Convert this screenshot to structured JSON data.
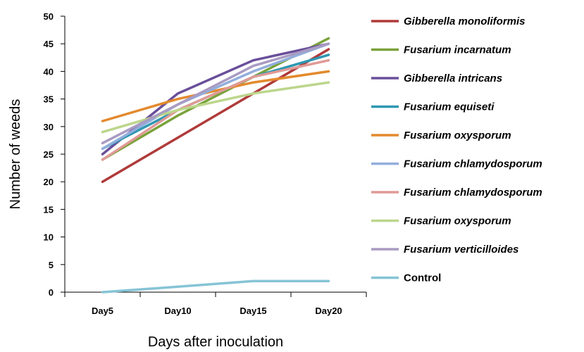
{
  "chart_data": {
    "type": "line",
    "title": "",
    "xlabel": "Days after inoculation",
    "ylabel": "Number of weeds",
    "categories": [
      "Day5",
      "Day10",
      "Day15",
      "Day20"
    ],
    "ylim": [
      0,
      50
    ],
    "yticks": [
      0,
      5,
      10,
      15,
      20,
      25,
      30,
      35,
      40,
      45,
      50
    ],
    "grid": false,
    "legend_position": "right",
    "series": [
      {
        "name": "Gibberella monoliformis",
        "italic": true,
        "color": "#b03a3a",
        "values": [
          20,
          28,
          36,
          44
        ]
      },
      {
        "name": "Fusarium incarnatum",
        "italic": true,
        "color": "#7aa23a",
        "values": [
          24,
          32,
          39,
          46
        ]
      },
      {
        "name": "Gibberella intricans",
        "italic": true,
        "color": "#6a4f9a",
        "values": [
          25,
          36,
          42,
          45
        ]
      },
      {
        "name": "Fusarium equiseti",
        "italic": true,
        "color": "#2f97b1",
        "values": [
          26,
          33,
          39,
          43
        ]
      },
      {
        "name": "Fusarium oxysporum",
        "italic": true,
        "color": "#e38a2e",
        "values": [
          31,
          35,
          38,
          40
        ]
      },
      {
        "name": "Fusarium chlamydosporum",
        "italic": true,
        "color": "#92aedc",
        "values": [
          26,
          34,
          40,
          45
        ]
      },
      {
        "name": "Fusarium chlamydosporum",
        "italic": true,
        "color": "#e09a96",
        "values": [
          24,
          33,
          39,
          42
        ]
      },
      {
        "name": "Fusarium oxysporum",
        "italic": true,
        "color": "#bcd68c",
        "values": [
          29,
          33,
          36,
          38
        ]
      },
      {
        "name": "Fusarium verticilloides",
        "italic": true,
        "color": "#a99bc2",
        "values": [
          27,
          34,
          41,
          45
        ]
      },
      {
        "name": "Control",
        "italic": false,
        "color": "#86c4d6",
        "values": [
          0,
          1,
          2,
          2
        ]
      }
    ]
  }
}
